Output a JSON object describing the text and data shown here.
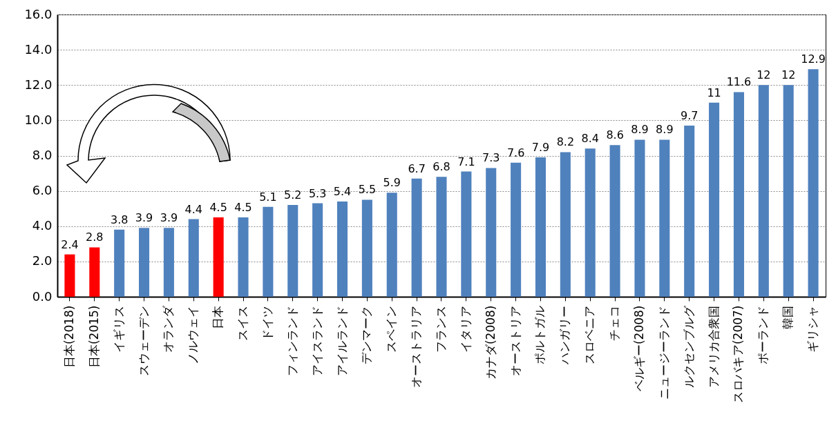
{
  "chart_data": {
    "type": "bar",
    "categories": [
      "日本(2018)",
      "日本(2015)",
      "イギリス",
      "スウェーデン",
      "オランダ",
      "ノルウェイ",
      "日本",
      "スイス",
      "ドイツ",
      "フィンランド",
      "アイスランド",
      "アイルランド",
      "デンマーク",
      "スペイン",
      "オーストラリア",
      "フランス",
      "イタリア",
      "カナダ(2008)",
      "オーストリア",
      "ポルトガル",
      "ハンガリー",
      "スロベニア",
      "チェコ",
      "ベルギー(2008)",
      "ニュージーランド",
      "ルクセンブルグ",
      "アメリカ合衆国",
      "スロバキア(2007)",
      "ポーランド",
      "韓国",
      "ギリシャ"
    ],
    "values": [
      2.4,
      2.8,
      3.8,
      3.9,
      3.9,
      4.4,
      4.5,
      4.5,
      5.1,
      5.2,
      5.3,
      5.4,
      5.5,
      5.9,
      6.7,
      6.8,
      7.1,
      7.3,
      7.6,
      7.9,
      8.2,
      8.4,
      8.6,
      8.9,
      8.9,
      9.7,
      11,
      11.6,
      12,
      12,
      12.9
    ],
    "colors": [
      "#ff0000",
      "#ff0000",
      "#4f81bd",
      "#4f81bd",
      "#4f81bd",
      "#4f81bd",
      "#ff0000",
      "#4f81bd",
      "#4f81bd",
      "#4f81bd",
      "#4f81bd",
      "#4f81bd",
      "#4f81bd",
      "#4f81bd",
      "#4f81bd",
      "#4f81bd",
      "#4f81bd",
      "#4f81bd",
      "#4f81bd",
      "#4f81bd",
      "#4f81bd",
      "#4f81bd",
      "#4f81bd",
      "#4f81bd",
      "#4f81bd",
      "#4f81bd",
      "#4f81bd",
      "#4f81bd",
      "#4f81bd",
      "#4f81bd",
      "#4f81bd"
    ],
    "ylim": [
      0,
      16
    ],
    "yticks": [
      {
        "value": 0,
        "label": "0.0"
      },
      {
        "value": 2,
        "label": "2.0"
      },
      {
        "value": 4,
        "label": "4.0"
      },
      {
        "value": 6,
        "label": "6.0"
      },
      {
        "value": 8,
        "label": "8.0"
      },
      {
        "value": 10,
        "label": "10.0"
      },
      {
        "value": 12,
        "label": "12.0"
      },
      {
        "value": 14,
        "label": "14.0"
      },
      {
        "value": 16,
        "label": "16.0"
      }
    ],
    "grid": "y",
    "data_labels": true
  }
}
